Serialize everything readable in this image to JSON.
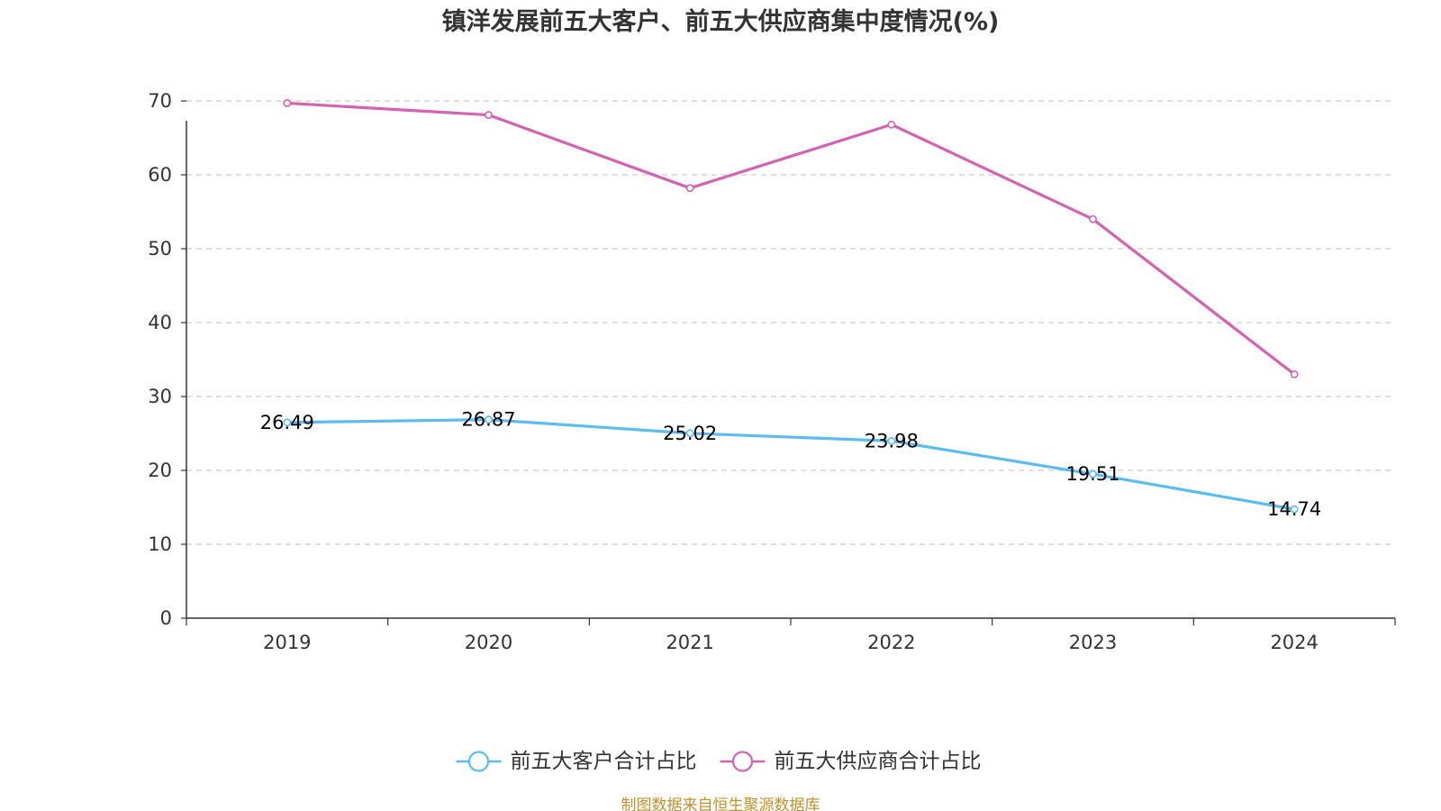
{
  "chart_data": {
    "type": "line",
    "title": "镇洋发展前五大客户、前五大供应商集中度情况(%)",
    "xlabel": "",
    "ylabel": "",
    "categories": [
      "2019",
      "2020",
      "2021",
      "2022",
      "2023",
      "2024"
    ],
    "ylim": [
      0,
      70
    ],
    "yticks": [
      0,
      10,
      20,
      30,
      40,
      50,
      60,
      70
    ],
    "grid": true,
    "legend_position": "bottom",
    "series": [
      {
        "name": "前五大客户合计占比",
        "color": "#5bbcf0",
        "values": [
          26.49,
          26.87,
          25.02,
          23.98,
          19.51,
          14.74
        ],
        "labels": [
          "26.49",
          "26.87",
          "25.02",
          "23.98",
          "19.51",
          "14.74"
        ]
      },
      {
        "name": "前五大供应商合计占比",
        "color": "#d462b0",
        "values": [
          69.7,
          68.1,
          58.2,
          66.8,
          54.0,
          33.0
        ]
      }
    ]
  },
  "footer": {
    "source": "制图数据来自恒生聚源数据库"
  }
}
